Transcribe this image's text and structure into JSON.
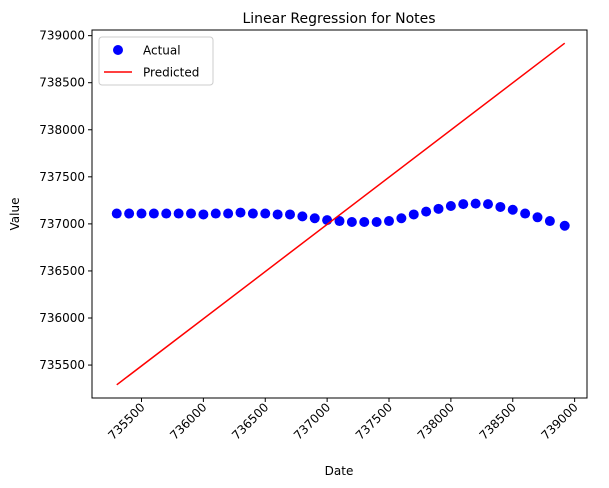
{
  "chart_data": {
    "type": "scatter",
    "title": "Linear Regression for Notes",
    "xlabel": "Date",
    "ylabel": "Value",
    "xlim": [
      735100,
      739100
    ],
    "ylim": [
      735150,
      739060
    ],
    "x_ticks": [
      735500,
      736000,
      736500,
      737000,
      737500,
      738000,
      738500,
      739000
    ],
    "y_ticks": [
      735500,
      736000,
      736500,
      737000,
      737500,
      738000,
      738500,
      739000
    ],
    "grid": false,
    "legend_position": "top-left",
    "series": [
      {
        "name": "Actual",
        "kind": "scatter",
        "color": "#0000ff",
        "x": [
          735300,
          735400,
          735500,
          735600,
          735700,
          735800,
          735900,
          736000,
          736100,
          736200,
          736300,
          736400,
          736500,
          736600,
          736700,
          736800,
          736900,
          737000,
          737100,
          737200,
          737300,
          737400,
          737500,
          737600,
          737700,
          737800,
          737900,
          738000,
          738100,
          738200,
          738300,
          738400,
          738500,
          738600,
          738700,
          738800,
          738920
        ],
        "y": [
          737110,
          737110,
          737110,
          737110,
          737110,
          737110,
          737110,
          737100,
          737110,
          737110,
          737120,
          737110,
          737110,
          737100,
          737100,
          737080,
          737060,
          737040,
          737030,
          737020,
          737020,
          737020,
          737030,
          737060,
          737100,
          737130,
          737160,
          737190,
          737210,
          737215,
          737210,
          737180,
          737150,
          737110,
          737070,
          737030,
          736980
        ]
      },
      {
        "name": "Predicted",
        "kind": "line",
        "color": "#ff0000",
        "x": [
          735300,
          738920
        ],
        "y": [
          735290,
          738920
        ]
      }
    ]
  }
}
